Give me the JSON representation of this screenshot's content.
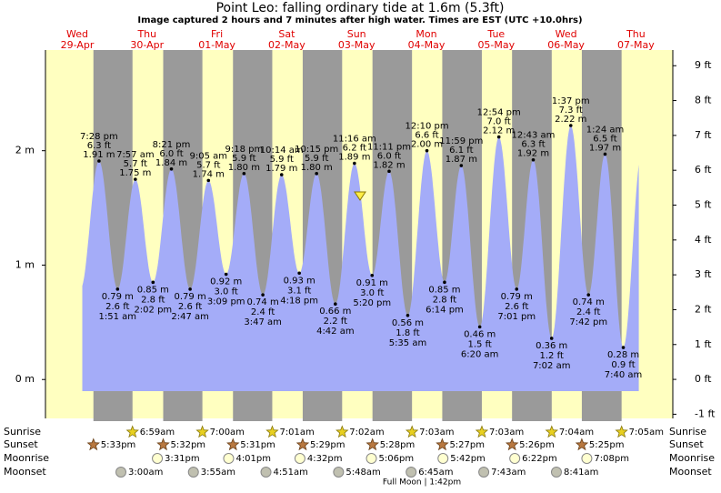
{
  "chart_data": {
    "type": "area",
    "title": "Point Leo: falling  ordinary tide at 1.6m (5.3ft)",
    "subtitle": "Image captured 2 hours and 7 minutes after high water. Times are EST (UTC +10.0hrs)",
    "current_height": 1.6,
    "ylim": [
      -0.34,
      2.88
    ],
    "yticks": [
      {
        "value": 0,
        "label": "0 m"
      },
      {
        "value": 1,
        "label": "1 m"
      },
      {
        "value": 2,
        "label": "2 m"
      }
    ],
    "y2lim": [
      -1.12,
      9.45
    ],
    "y2ticks": [
      {
        "value": -1,
        "label": "-1 ft"
      },
      {
        "value": 0,
        "label": "0 ft"
      },
      {
        "value": 1,
        "label": "1 ft"
      },
      {
        "value": 2,
        "label": "2 ft"
      },
      {
        "value": 3,
        "label": "3 ft"
      },
      {
        "value": 4,
        "label": "4 ft"
      },
      {
        "value": 5,
        "label": "5 ft"
      },
      {
        "value": 6,
        "label": "6 ft"
      },
      {
        "value": 7,
        "label": "7 ft"
      },
      {
        "value": 8,
        "label": "8 ft"
      },
      {
        "value": 9,
        "label": "9 ft"
      }
    ],
    "row_labels": [
      "Sunrise",
      "Sunset",
      "Moonrise",
      "Moonset"
    ],
    "full_moon": "Full Moon | 1:42pm",
    "colors": {
      "day": "#ffffc0",
      "night": "#9a9a9a",
      "water": "#a4acf8",
      "header": "#e00000"
    },
    "days": [
      {
        "name": "Wed",
        "date": "29-Apr",
        "sunset": "5:33pm",
        "tides": [
          {
            "time": "7:28 pm",
            "height": 1.91,
            "height_label": "1.91 m",
            "feet_label": "6.3 ft"
          }
        ]
      },
      {
        "name": "Thu",
        "date": "30-Apr",
        "sunrise": "6:59am",
        "sunset": "5:32pm",
        "moonrise": "3:31pm",
        "moonset": "3:00am",
        "tides": [
          {
            "time": "1:51 am",
            "height": 0.79,
            "height_label": "0.79 m",
            "feet_label": "2.6 ft"
          },
          {
            "time": "7:57 am",
            "height": 1.75,
            "height_label": "1.75 m",
            "feet_label": "5.7 ft"
          },
          {
            "time": "2:02 pm",
            "height": 0.85,
            "height_label": "0.85 m",
            "feet_label": "2.8 ft"
          },
          {
            "time": "8:21 pm",
            "height": 1.84,
            "height_label": "1.84 m",
            "feet_label": "6.0 ft"
          }
        ]
      },
      {
        "name": "Fri",
        "date": "01-May",
        "sunrise": "7:00am",
        "sunset": "5:31pm",
        "moonrise": "4:01pm",
        "moonset": "3:55am",
        "tides": [
          {
            "time": "2:47 am",
            "height": 0.79,
            "height_label": "0.79 m",
            "feet_label": "2.6 ft"
          },
          {
            "time": "9:05 am",
            "height": 1.74,
            "height_label": "1.74 m",
            "feet_label": "5.7 ft"
          },
          {
            "time": "3:09 pm",
            "height": 0.92,
            "height_label": "0.92 m",
            "feet_label": "3.0 ft"
          },
          {
            "time": "9:18 pm",
            "height": 1.8,
            "height_label": "1.80 m",
            "feet_label": "5.9 ft"
          }
        ]
      },
      {
        "name": "Sat",
        "date": "02-May",
        "sunrise": "7:01am",
        "sunset": "5:29pm",
        "moonrise": "4:32pm",
        "moonset": "4:51am",
        "tides": [
          {
            "time": "3:47 am",
            "height": 0.74,
            "height_label": "0.74 m",
            "feet_label": "2.4 ft"
          },
          {
            "time": "10:14 am",
            "height": 1.79,
            "height_label": "1.79 m",
            "feet_label": "5.9 ft"
          },
          {
            "time": "4:18 pm",
            "height": 0.93,
            "height_label": "0.93 m",
            "feet_label": "3.1 ft"
          },
          {
            "time": "10:15 pm",
            "height": 1.8,
            "height_label": "1.80 m",
            "feet_label": "5.9 ft"
          }
        ]
      },
      {
        "name": "Sun",
        "date": "03-May",
        "sunrise": "7:02am",
        "sunset": "5:28pm",
        "moonrise": "5:06pm",
        "moonset": "5:48am",
        "tides": [
          {
            "time": "4:42 am",
            "height": 0.66,
            "height_label": "0.66 m",
            "feet_label": "2.2 ft"
          },
          {
            "time": "11:16 am",
            "height": 1.89,
            "height_label": "1.89 m",
            "feet_label": "6.2 ft"
          },
          {
            "time": "5:20 pm",
            "height": 0.91,
            "height_label": "0.91 m",
            "feet_label": "3.0 ft"
          },
          {
            "time": "11:11 pm",
            "height": 1.82,
            "height_label": "1.82 m",
            "feet_label": "6.0 ft"
          }
        ]
      },
      {
        "name": "Mon",
        "date": "04-May",
        "sunrise": "7:03am",
        "sunset": "5:27pm",
        "moonrise": "5:42pm",
        "moonset": "6:45am",
        "tides": [
          {
            "time": "5:35 am",
            "height": 0.56,
            "height_label": "0.56 m",
            "feet_label": "1.8 ft"
          },
          {
            "time": "12:10 pm",
            "height": 2.0,
            "height_label": "2.00 m",
            "feet_label": "6.6 ft"
          },
          {
            "time": "6:14 pm",
            "height": 0.85,
            "height_label": "0.85 m",
            "feet_label": "2.8 ft"
          },
          {
            "time": "11:59 pm",
            "height": 1.87,
            "height_label": "1.87 m",
            "feet_label": "6.1 ft"
          }
        ]
      },
      {
        "name": "Tue",
        "date": "05-May",
        "sunrise": "7:03am",
        "sunset": "5:26pm",
        "moonrise": "6:22pm",
        "moonset": "7:43am",
        "tides": [
          {
            "time": "6:20 am",
            "height": 0.46,
            "height_label": "0.46 m",
            "feet_label": "1.5 ft"
          },
          {
            "time": "12:54 pm",
            "height": 2.12,
            "height_label": "2.12 m",
            "feet_label": "7.0 ft"
          },
          {
            "time": "7:01 pm",
            "height": 0.79,
            "height_label": "0.79 m",
            "feet_label": "2.6 ft"
          }
        ]
      },
      {
        "name": "Wed",
        "date": "06-May",
        "sunrise": "7:04am",
        "sunset": "5:25pm",
        "moonrise": "7:08pm",
        "moonset": "8:41am",
        "tides": [
          {
            "time": "12:43 am",
            "height": 1.92,
            "height_label": "1.92 m",
            "feet_label": "6.3 ft"
          },
          {
            "time": "7:02 am",
            "height": 0.36,
            "height_label": "0.36 m",
            "feet_label": "1.2 ft"
          },
          {
            "time": "1:37 pm",
            "height": 2.22,
            "height_label": "2.22 m",
            "feet_label": "7.3 ft"
          },
          {
            "time": "7:42 pm",
            "height": 0.74,
            "height_label": "0.74 m",
            "feet_label": "2.4 ft"
          }
        ]
      },
      {
        "name": "Thu",
        "date": "07-May",
        "sunrise": "7:05am",
        "tides": [
          {
            "time": "1:24 am",
            "height": 1.97,
            "height_label": "1.97 m",
            "feet_label": "6.5 ft"
          },
          {
            "time": "7:40 am",
            "height": 0.28,
            "height_label": "0.28 m",
            "feet_label": "0.9 ft"
          }
        ]
      }
    ]
  }
}
